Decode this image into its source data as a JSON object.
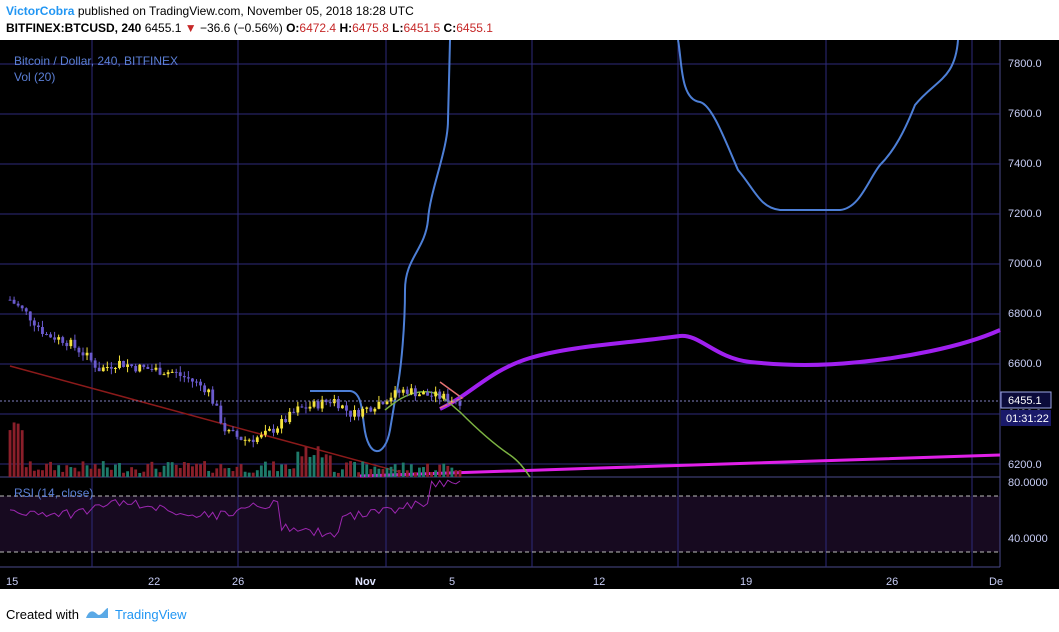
{
  "header": {
    "author": "VictorCobra",
    "published": "published on TradingView.com, November 05, 2018 18:28 UTC",
    "symbol": "BITFINEX:BTCUSD, 240",
    "last": "6455.1",
    "change": "−36.6 (−0.56%)",
    "o_label": "O:",
    "o": "6472.4",
    "h_label": "H:",
    "h": "6475.8",
    "l_label": "L:",
    "l": "6451.5",
    "c_label": "C:",
    "c": "6455.1"
  },
  "legend": {
    "title": "Bitcoin / Dollar, 240, BITFINEX",
    "vol": "Vol (20)",
    "rsi": "RSI (14, close)"
  },
  "price_axis": {
    "ticks": [
      "7800.0",
      "7600.0",
      "7400.0",
      "7200.0",
      "7000.0",
      "6800.0",
      "6600.0",
      "6400.0",
      "6200.0"
    ],
    "last_price": "6455.1",
    "countdown": "01:31:22"
  },
  "rsi_axis": {
    "ticks": [
      "80.0000",
      "40.0000"
    ]
  },
  "time_axis": {
    "labels": [
      "15",
      "22",
      "26",
      "Nov",
      "5",
      "12",
      "19",
      "26",
      "De"
    ]
  },
  "footer": {
    "created": "Created with",
    "brand": "TradingView"
  },
  "colors": {
    "background": "#000000",
    "grid": "#2e2a7a",
    "axis_text": "#c7cdf5",
    "bollinger": "#4d7fd6",
    "ma_purple": "#a020f0",
    "ma_magenta": "#e020e8",
    "trendline": "#8b1a1a",
    "rsi_line": "#9c27b0",
    "candle_up": "#f5e33c",
    "candle_down": "#6a5acd"
  },
  "chart_data": {
    "type": "candlestick",
    "y_range": [
      6150,
      7900
    ],
    "x_labels": [
      "15",
      "22",
      "26",
      "Nov",
      "5",
      "12",
      "19",
      "26",
      "De"
    ],
    "last_close": 6455.1,
    "rsi_levels": [
      80,
      40
    ],
    "price_path": [
      [
        0,
        6860
      ],
      [
        0.03,
        6800
      ],
      [
        0.06,
        6720
      ],
      [
        0.09,
        6700
      ],
      [
        0.12,
        6650
      ],
      [
        0.15,
        6580
      ],
      [
        0.18,
        6610
      ],
      [
        0.21,
        6590
      ],
      [
        0.24,
        6580
      ],
      [
        0.27,
        6570
      ],
      [
        0.3,
        6540
      ],
      [
        0.33,
        6500
      ],
      [
        0.36,
        6330
      ],
      [
        0.39,
        6300
      ],
      [
        0.42,
        6310
      ],
      [
        0.45,
        6360
      ],
      [
        0.48,
        6420
      ],
      [
        0.51,
        6440
      ],
      [
        0.54,
        6460
      ],
      [
        0.57,
        6400
      ],
      [
        0.6,
        6430
      ],
      [
        0.63,
        6470
      ],
      [
        0.66,
        6500
      ],
      [
        0.69,
        6480
      ],
      [
        0.72,
        6470
      ],
      [
        0.75,
        6455
      ]
    ]
  }
}
